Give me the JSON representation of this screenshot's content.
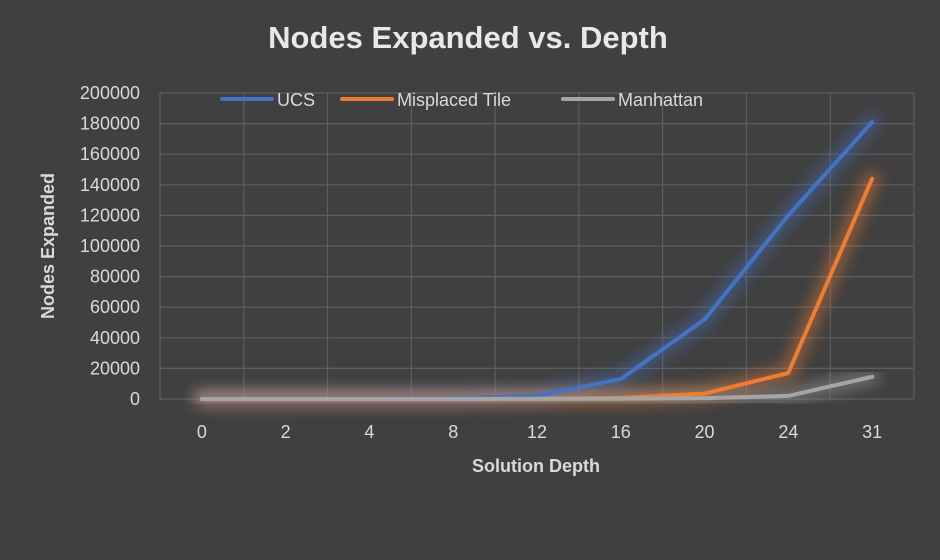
{
  "chart_data": {
    "type": "line",
    "title": "Nodes Expanded vs. Depth",
    "xlabel": "Solution Depth",
    "ylabel": "Nodes Expanded",
    "categories": [
      "0",
      "2",
      "4",
      "8",
      "12",
      "16",
      "20",
      "24",
      "31"
    ],
    "ylim": [
      0,
      200000
    ],
    "yticks": [
      0,
      20000,
      40000,
      60000,
      80000,
      100000,
      120000,
      140000,
      160000,
      180000,
      200000
    ],
    "grid": true,
    "legend": "top",
    "series": [
      {
        "name": "UCS",
        "color": "#4472c4",
        "values": [
          0,
          10,
          100,
          300,
          2000,
          13000,
          52000,
          120000,
          181000
        ]
      },
      {
        "name": "Misplaced Tile",
        "color": "#ed7d31",
        "values": [
          0,
          2,
          10,
          30,
          150,
          700,
          3500,
          17000,
          144000
        ]
      },
      {
        "name": "Manhattan",
        "color": "#a5a5a5",
        "values": [
          0,
          2,
          5,
          15,
          50,
          150,
          600,
          2000,
          14500
        ]
      }
    ]
  }
}
